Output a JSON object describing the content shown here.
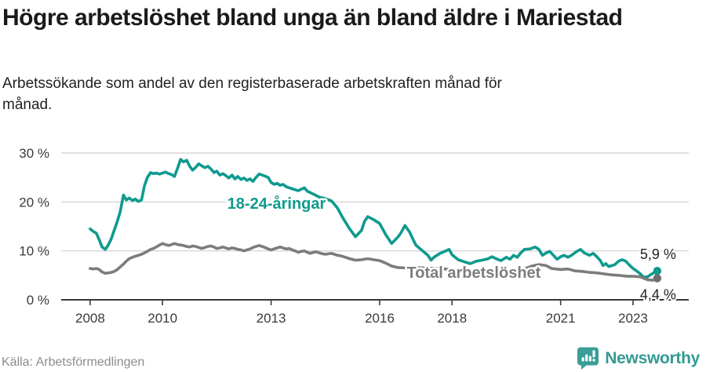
{
  "header": {
    "title": "Högre arbetslöshet bland unga än bland äldre i Mariestad",
    "subtitle": "Arbetssökande som andel av den registerbaserade arbetskraften månad för månad."
  },
  "footer": {
    "source": "Källa: Arbetsförmedlingen",
    "brand": "Newsworthy"
  },
  "colors": {
    "young": "#0f9a8e",
    "total": "#7c7c7c",
    "grid": "#d9d9d9",
    "axis": "#3a3a3a",
    "tick_text": "#3a3a3a",
    "annotation_text": "#1f1f1f",
    "total_dot": "#6e6e6e",
    "brand_badge": "#3b9e97",
    "brand_text": "#339a93"
  },
  "chart_data": {
    "type": "line",
    "title": "Högre arbetslöshet bland unga än bland äldre i Mariestad",
    "xlabel": "",
    "ylabel": "",
    "grid": "horizontal",
    "legend_position": "inline-labels",
    "xlim": [
      2007.2,
      2024.54
    ],
    "ylim": [
      0,
      30
    ],
    "x_tick_values": [
      2008,
      2010,
      2013,
      2016,
      2018,
      2021,
      2023
    ],
    "x_tick_labels": [
      "2008",
      "2010",
      "2013",
      "2016",
      "2018",
      "2021",
      "2023"
    ],
    "y_tick_values": [
      0,
      10,
      20,
      30
    ],
    "y_tick_labels": [
      "0 %",
      "10 %",
      "20 %",
      "30 %"
    ],
    "series": [
      {
        "name": "18-24-åringar",
        "color_key": "young",
        "label": {
          "text": "18-24-åringar",
          "x": 2013.15,
          "y": 19.7
        },
        "end_label": {
          "text": "5,9 %",
          "placement": "above"
        },
        "end_value": 5.9,
        "points": [
          [
            2008.0,
            14.5
          ],
          [
            2008.08,
            14.0
          ],
          [
            2008.17,
            13.6
          ],
          [
            2008.25,
            12.3
          ],
          [
            2008.33,
            10.8
          ],
          [
            2008.42,
            10.3
          ],
          [
            2008.5,
            11.2
          ],
          [
            2008.58,
            12.4
          ],
          [
            2008.67,
            14.3
          ],
          [
            2008.75,
            16.0
          ],
          [
            2008.83,
            18.0
          ],
          [
            2008.92,
            21.4
          ],
          [
            2009.0,
            20.4
          ],
          [
            2009.08,
            20.8
          ],
          [
            2009.17,
            20.3
          ],
          [
            2009.25,
            20.6
          ],
          [
            2009.33,
            20.1
          ],
          [
            2009.42,
            20.4
          ],
          [
            2009.5,
            23.3
          ],
          [
            2009.58,
            25.0
          ],
          [
            2009.67,
            26.0
          ],
          [
            2009.75,
            25.8
          ],
          [
            2009.83,
            25.9
          ],
          [
            2009.92,
            25.7
          ],
          [
            2010.0,
            25.9
          ],
          [
            2010.08,
            26.1
          ],
          [
            2010.17,
            25.8
          ],
          [
            2010.25,
            25.6
          ],
          [
            2010.33,
            25.2
          ],
          [
            2010.42,
            27.0
          ],
          [
            2010.5,
            28.7
          ],
          [
            2010.58,
            28.2
          ],
          [
            2010.67,
            28.5
          ],
          [
            2010.75,
            27.3
          ],
          [
            2010.83,
            26.5
          ],
          [
            2010.92,
            27.1
          ],
          [
            2011.0,
            27.8
          ],
          [
            2011.08,
            27.4
          ],
          [
            2011.17,
            27.0
          ],
          [
            2011.25,
            27.3
          ],
          [
            2011.33,
            26.8
          ],
          [
            2011.42,
            26.0
          ],
          [
            2011.5,
            26.3
          ],
          [
            2011.58,
            25.5
          ],
          [
            2011.67,
            25.8
          ],
          [
            2011.75,
            25.4
          ],
          [
            2011.83,
            24.9
          ],
          [
            2011.92,
            25.5
          ],
          [
            2012.0,
            24.7
          ],
          [
            2012.08,
            25.2
          ],
          [
            2012.17,
            24.6
          ],
          [
            2012.25,
            24.9
          ],
          [
            2012.33,
            24.4
          ],
          [
            2012.42,
            24.7
          ],
          [
            2012.5,
            24.2
          ],
          [
            2012.58,
            25.0
          ],
          [
            2012.67,
            25.7
          ],
          [
            2012.75,
            25.5
          ],
          [
            2012.83,
            25.3
          ],
          [
            2012.92,
            25.0
          ],
          [
            2013.0,
            24.0
          ],
          [
            2013.08,
            23.6
          ],
          [
            2013.17,
            23.8
          ],
          [
            2013.25,
            23.4
          ],
          [
            2013.33,
            23.6
          ],
          [
            2013.42,
            23.1
          ],
          [
            2013.5,
            22.9
          ],
          [
            2013.58,
            22.7
          ],
          [
            2013.67,
            22.5
          ],
          [
            2013.75,
            22.3
          ],
          [
            2013.83,
            22.6
          ],
          [
            2013.92,
            22.9
          ],
          [
            2014.0,
            22.2
          ],
          [
            2014.17,
            21.6
          ],
          [
            2014.33,
            21.0
          ],
          [
            2014.5,
            20.7
          ],
          [
            2014.67,
            20.2
          ],
          [
            2014.83,
            18.8
          ],
          [
            2015.0,
            16.5
          ],
          [
            2015.17,
            14.5
          ],
          [
            2015.33,
            12.9
          ],
          [
            2015.5,
            14.2
          ],
          [
            2015.58,
            16.0
          ],
          [
            2015.67,
            17.0
          ],
          [
            2015.83,
            16.4
          ],
          [
            2016.0,
            15.6
          ],
          [
            2016.17,
            13.3
          ],
          [
            2016.33,
            11.5
          ],
          [
            2016.5,
            12.8
          ],
          [
            2016.58,
            13.6
          ],
          [
            2016.7,
            15.2
          ],
          [
            2016.83,
            13.8
          ],
          [
            2016.92,
            12.4
          ],
          [
            2017.0,
            11.2
          ],
          [
            2017.17,
            10.1
          ],
          [
            2017.33,
            9.1
          ],
          [
            2017.42,
            8.1
          ],
          [
            2017.5,
            8.7
          ],
          [
            2017.67,
            9.5
          ],
          [
            2017.83,
            10.0
          ],
          [
            2017.92,
            10.3
          ],
          [
            2018.0,
            9.2
          ],
          [
            2018.17,
            8.2
          ],
          [
            2018.33,
            7.8
          ],
          [
            2018.5,
            7.4
          ],
          [
            2018.67,
            7.9
          ],
          [
            2018.83,
            8.1
          ],
          [
            2019.0,
            8.4
          ],
          [
            2019.1,
            8.8
          ],
          [
            2019.25,
            8.3
          ],
          [
            2019.35,
            8.0
          ],
          [
            2019.5,
            8.7
          ],
          [
            2019.6,
            8.3
          ],
          [
            2019.7,
            9.1
          ],
          [
            2019.8,
            8.7
          ],
          [
            2019.9,
            9.6
          ],
          [
            2020.0,
            10.3
          ],
          [
            2020.15,
            10.4
          ],
          [
            2020.3,
            10.8
          ],
          [
            2020.4,
            10.3
          ],
          [
            2020.5,
            9.1
          ],
          [
            2020.6,
            9.6
          ],
          [
            2020.7,
            9.9
          ],
          [
            2020.8,
            9.1
          ],
          [
            2020.9,
            8.3
          ],
          [
            2021.0,
            8.8
          ],
          [
            2021.1,
            9.1
          ],
          [
            2021.2,
            8.7
          ],
          [
            2021.3,
            9.1
          ],
          [
            2021.45,
            9.9
          ],
          [
            2021.55,
            10.3
          ],
          [
            2021.65,
            9.6
          ],
          [
            2021.8,
            9.1
          ],
          [
            2021.9,
            9.5
          ],
          [
            2022.0,
            8.8
          ],
          [
            2022.1,
            8.0
          ],
          [
            2022.17,
            7.0
          ],
          [
            2022.25,
            7.4
          ],
          [
            2022.33,
            6.8
          ],
          [
            2022.42,
            7.0
          ],
          [
            2022.5,
            7.2
          ],
          [
            2022.6,
            7.9
          ],
          [
            2022.7,
            8.2
          ],
          [
            2022.8,
            7.9
          ],
          [
            2022.9,
            7.1
          ],
          [
            2023.0,
            6.4
          ],
          [
            2023.1,
            5.9
          ],
          [
            2023.2,
            5.3
          ],
          [
            2023.3,
            4.6
          ],
          [
            2023.4,
            4.7
          ],
          [
            2023.5,
            5.2
          ],
          [
            2023.6,
            5.6
          ],
          [
            2023.67,
            5.9
          ]
        ]
      },
      {
        "name": "Total arbetslöshet",
        "color_key": "total",
        "label": {
          "text": "Total arbetslöshet",
          "x": 2018.6,
          "y": 5.6
        },
        "end_label": {
          "text": "4,4 %",
          "placement": "below"
        },
        "end_value": 4.4,
        "points": [
          [
            2008.0,
            6.4
          ],
          [
            2008.08,
            6.3
          ],
          [
            2008.17,
            6.4
          ],
          [
            2008.25,
            6.2
          ],
          [
            2008.33,
            5.7
          ],
          [
            2008.42,
            5.4
          ],
          [
            2008.5,
            5.5
          ],
          [
            2008.58,
            5.6
          ],
          [
            2008.67,
            5.8
          ],
          [
            2008.75,
            6.2
          ],
          [
            2008.83,
            6.7
          ],
          [
            2008.92,
            7.3
          ],
          [
            2009.0,
            7.9
          ],
          [
            2009.08,
            8.4
          ],
          [
            2009.17,
            8.7
          ],
          [
            2009.25,
            8.9
          ],
          [
            2009.33,
            9.1
          ],
          [
            2009.42,
            9.3
          ],
          [
            2009.5,
            9.6
          ],
          [
            2009.58,
            9.9
          ],
          [
            2009.67,
            10.3
          ],
          [
            2009.75,
            10.5
          ],
          [
            2009.83,
            10.8
          ],
          [
            2009.92,
            11.2
          ],
          [
            2010.0,
            11.5
          ],
          [
            2010.08,
            11.3
          ],
          [
            2010.17,
            11.1
          ],
          [
            2010.25,
            11.3
          ],
          [
            2010.33,
            11.5
          ],
          [
            2010.42,
            11.3
          ],
          [
            2010.5,
            11.2
          ],
          [
            2010.58,
            11.1
          ],
          [
            2010.67,
            10.9
          ],
          [
            2010.75,
            10.8
          ],
          [
            2010.83,
            11.0
          ],
          [
            2010.92,
            10.9
          ],
          [
            2011.0,
            10.7
          ],
          [
            2011.08,
            10.5
          ],
          [
            2011.17,
            10.7
          ],
          [
            2011.25,
            10.9
          ],
          [
            2011.33,
            11.0
          ],
          [
            2011.42,
            10.8
          ],
          [
            2011.5,
            10.5
          ],
          [
            2011.58,
            10.6
          ],
          [
            2011.67,
            10.8
          ],
          [
            2011.75,
            10.6
          ],
          [
            2011.83,
            10.4
          ],
          [
            2011.92,
            10.6
          ],
          [
            2012.0,
            10.5
          ],
          [
            2012.08,
            10.3
          ],
          [
            2012.17,
            10.2
          ],
          [
            2012.25,
            10.0
          ],
          [
            2012.33,
            10.2
          ],
          [
            2012.42,
            10.4
          ],
          [
            2012.5,
            10.7
          ],
          [
            2012.58,
            10.9
          ],
          [
            2012.67,
            11.1
          ],
          [
            2012.75,
            10.9
          ],
          [
            2012.83,
            10.7
          ],
          [
            2012.92,
            10.4
          ],
          [
            2013.0,
            10.2
          ],
          [
            2013.08,
            10.4
          ],
          [
            2013.17,
            10.6
          ],
          [
            2013.25,
            10.8
          ],
          [
            2013.33,
            10.6
          ],
          [
            2013.42,
            10.4
          ],
          [
            2013.5,
            10.5
          ],
          [
            2013.58,
            10.2
          ],
          [
            2013.67,
            10.0
          ],
          [
            2013.75,
            9.7
          ],
          [
            2013.83,
            9.9
          ],
          [
            2013.92,
            10.0
          ],
          [
            2014.0,
            9.7
          ],
          [
            2014.08,
            9.5
          ],
          [
            2014.17,
            9.7
          ],
          [
            2014.25,
            9.8
          ],
          [
            2014.33,
            9.6
          ],
          [
            2014.42,
            9.4
          ],
          [
            2014.5,
            9.3
          ],
          [
            2014.58,
            9.4
          ],
          [
            2014.67,
            9.5
          ],
          [
            2014.75,
            9.3
          ],
          [
            2014.83,
            9.1
          ],
          [
            2014.92,
            9.0
          ],
          [
            2015.0,
            8.8
          ],
          [
            2015.17,
            8.4
          ],
          [
            2015.33,
            8.1
          ],
          [
            2015.5,
            8.2
          ],
          [
            2015.67,
            8.4
          ],
          [
            2015.83,
            8.2
          ],
          [
            2016.0,
            8.0
          ],
          [
            2016.17,
            7.5
          ],
          [
            2016.33,
            6.9
          ],
          [
            2016.5,
            6.6
          ],
          [
            2016.75,
            6.5
          ],
          [
            2017.0,
            6.6
          ],
          [
            2017.25,
            6.5
          ],
          [
            2017.5,
            6.4
          ],
          [
            2017.75,
            6.3
          ],
          [
            2018.0,
            6.2
          ],
          [
            2018.25,
            6.1
          ],
          [
            2018.5,
            6.1
          ],
          [
            2018.75,
            6.0
          ],
          [
            2019.0,
            6.0
          ],
          [
            2019.25,
            5.9
          ],
          [
            2019.5,
            6.0
          ],
          [
            2019.75,
            6.1
          ],
          [
            2020.0,
            6.3
          ],
          [
            2020.2,
            6.9
          ],
          [
            2020.4,
            7.2
          ],
          [
            2020.6,
            7.0
          ],
          [
            2020.75,
            6.4
          ],
          [
            2021.0,
            6.2
          ],
          [
            2021.2,
            6.3
          ],
          [
            2021.4,
            5.9
          ],
          [
            2021.6,
            5.8
          ],
          [
            2021.8,
            5.6
          ],
          [
            2022.0,
            5.5
          ],
          [
            2022.2,
            5.3
          ],
          [
            2022.4,
            5.1
          ],
          [
            2022.6,
            5.0
          ],
          [
            2022.85,
            4.8
          ],
          [
            2023.0,
            4.8
          ],
          [
            2023.2,
            4.7
          ],
          [
            2023.3,
            4.4
          ],
          [
            2023.4,
            4.1
          ],
          [
            2023.55,
            4.0
          ],
          [
            2023.67,
            4.4
          ]
        ]
      }
    ]
  }
}
